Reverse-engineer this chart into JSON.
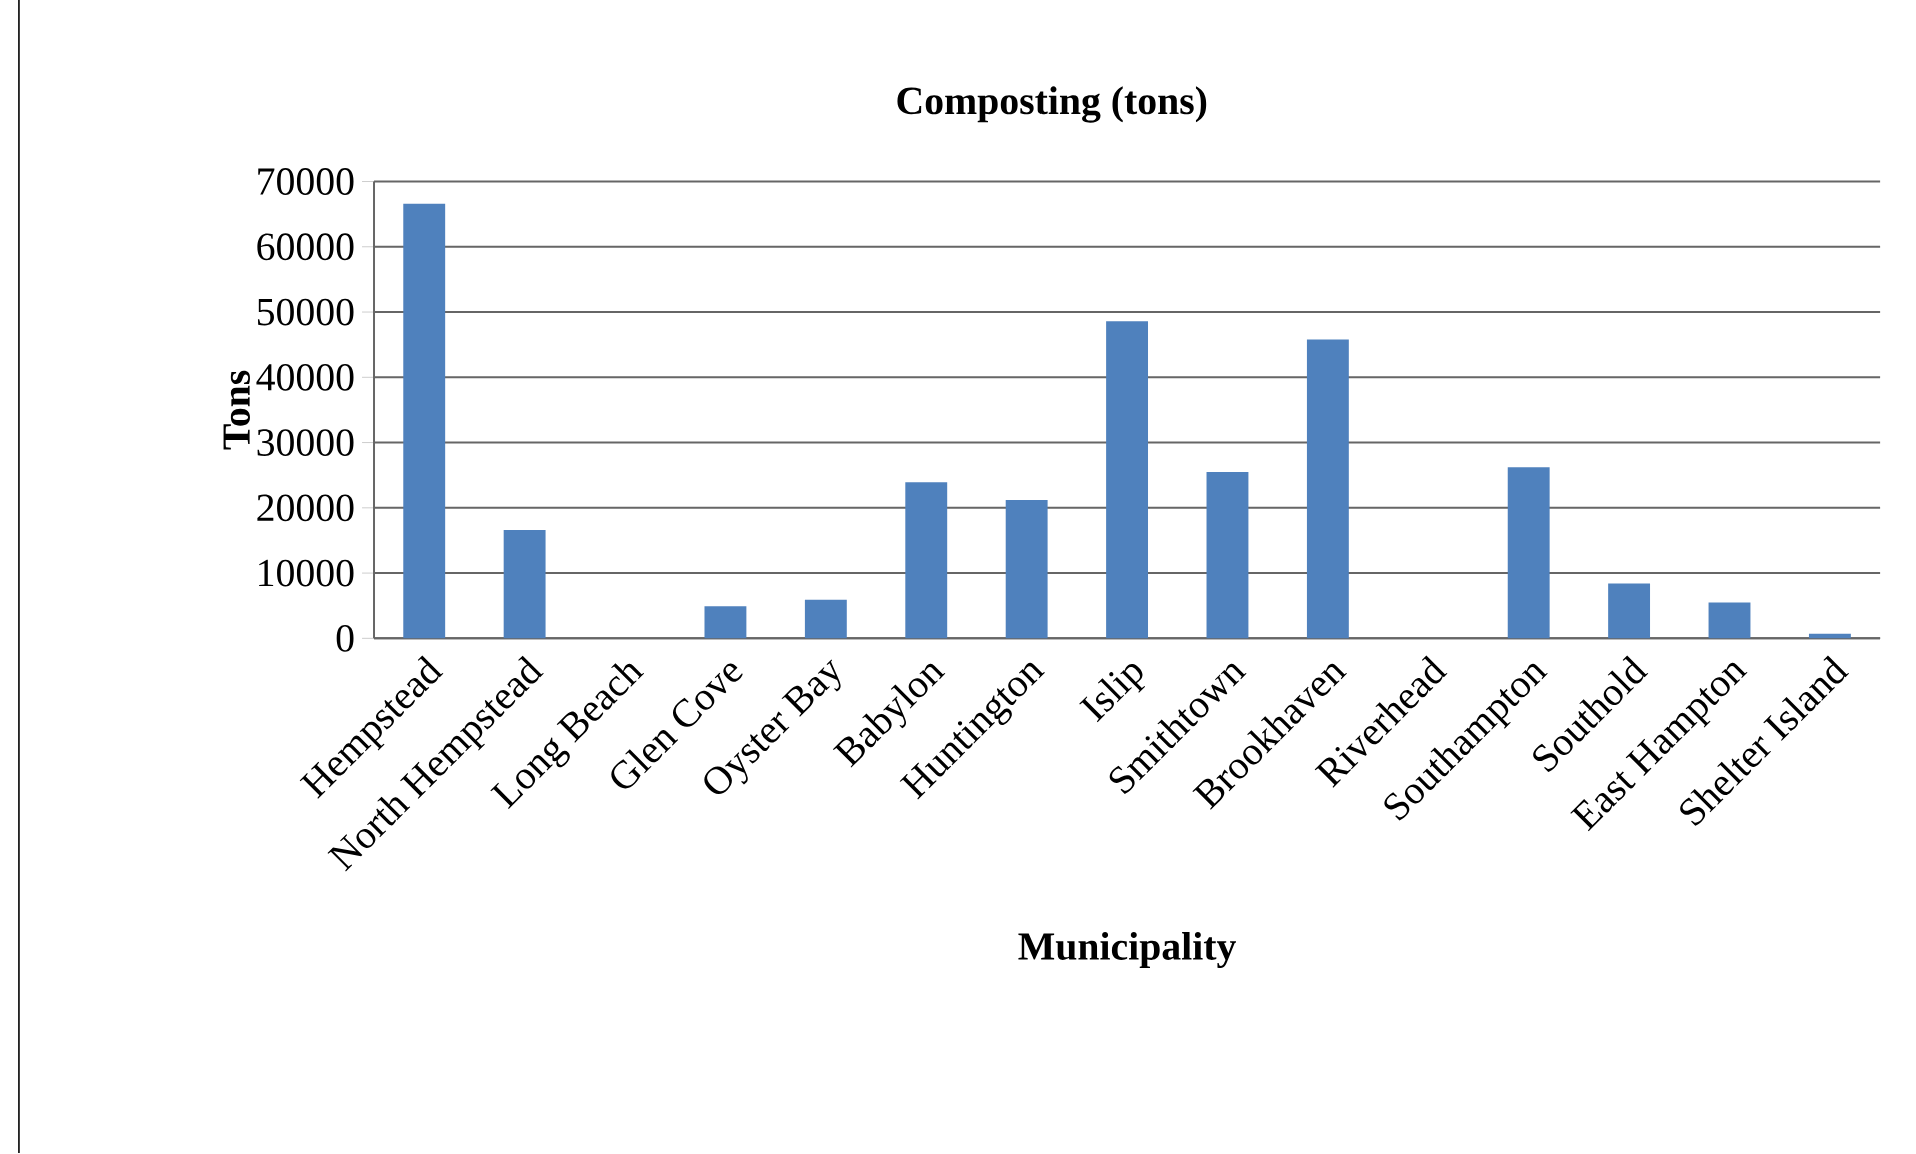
{
  "chart_data": {
    "type": "bar",
    "title": "Composting (tons)",
    "xlabel": "Municipality",
    "ylabel": "Tons",
    "categories": [
      "Hempstead",
      "North Hempstead",
      "Long Beach",
      "Glen Cove",
      "Oyster Bay",
      "Babylon",
      "Huntington",
      "Islip",
      "Smithtown",
      "Brookhaven",
      "Riverhead",
      "Southampton",
      "Southold",
      "East Hampton",
      "Shelter Island"
    ],
    "values": [
      66600,
      16600,
      0,
      4900,
      5900,
      23900,
      21200,
      48600,
      25500,
      45800,
      0,
      26200,
      8400,
      5500,
      700
    ],
    "color": "#4f81bd",
    "ylim": [
      0,
      70000
    ],
    "yticks": [
      0,
      10000,
      20000,
      30000,
      40000,
      50000,
      60000,
      70000
    ],
    "grid": "y"
  }
}
